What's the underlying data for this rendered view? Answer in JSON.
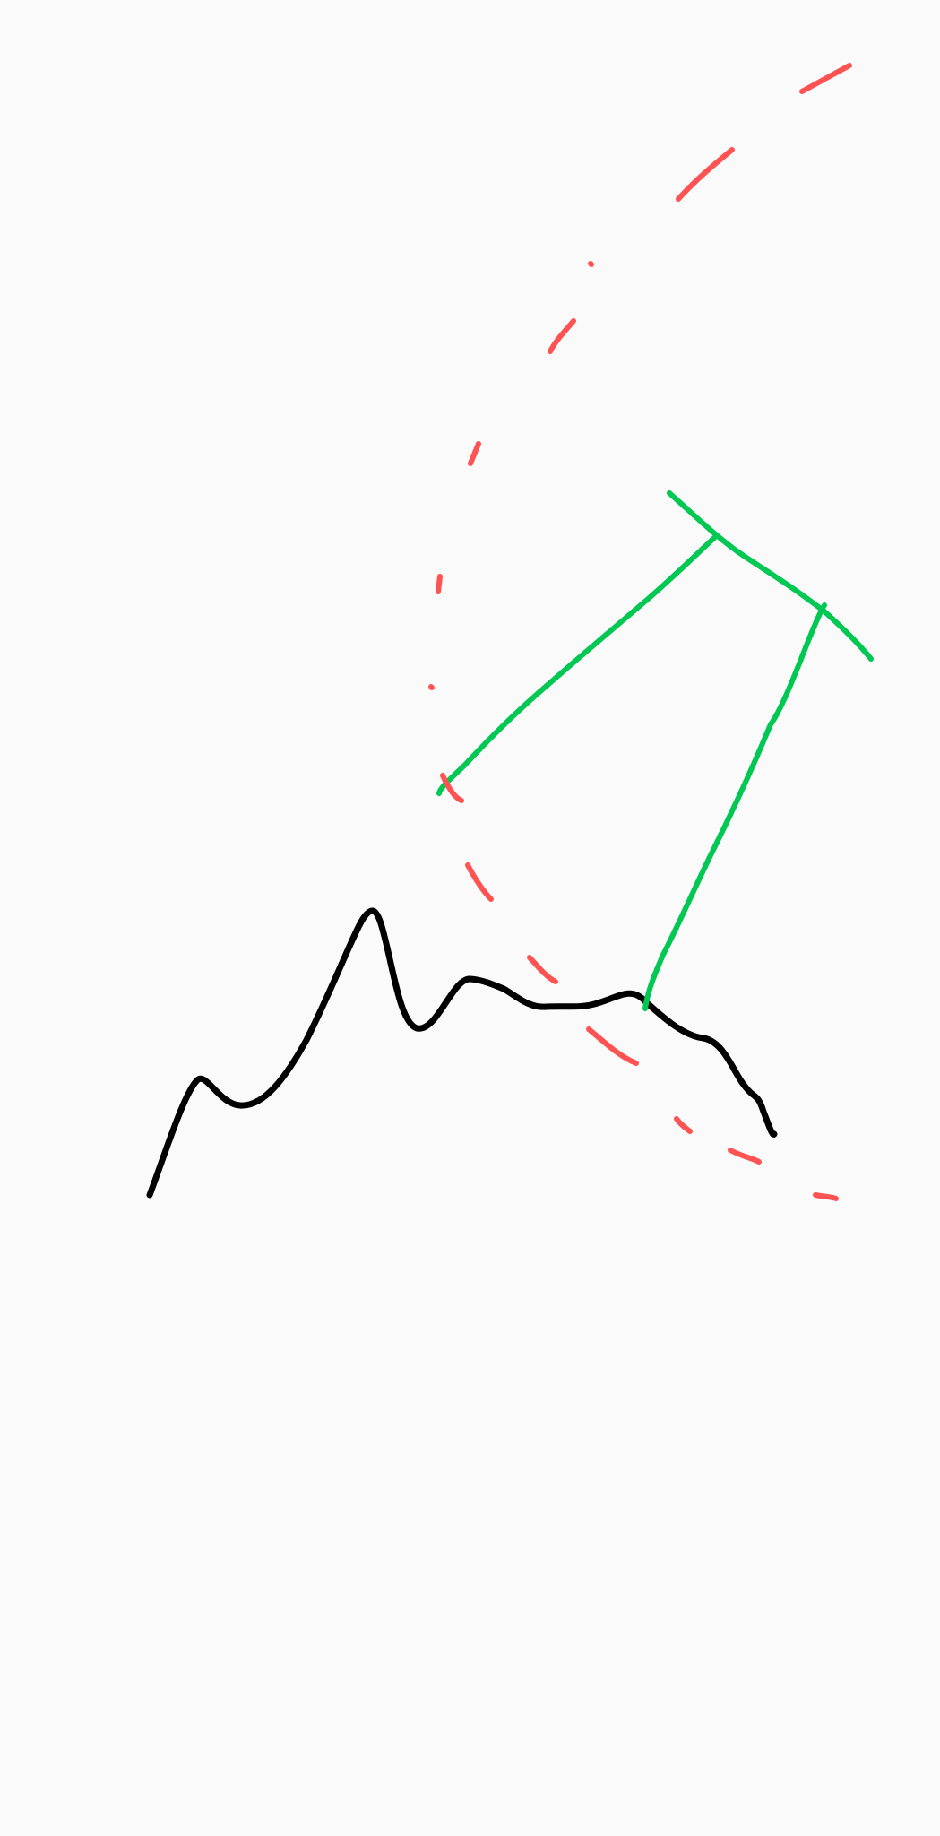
{
  "canvas": {
    "background": "#fafafa"
  },
  "colors": {
    "black": "#000000",
    "green": "#00c853",
    "red": "#ff5252"
  }
}
